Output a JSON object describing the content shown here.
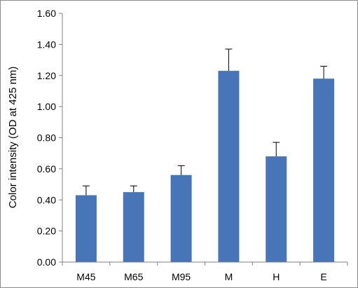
{
  "chart_data": {
    "type": "bar",
    "title": "",
    "xlabel": "",
    "ylabel": "Color intensity (OD at 425 nm)",
    "categories": [
      "M45",
      "M65",
      "M95",
      "M",
      "H",
      "E"
    ],
    "values": [
      0.43,
      0.45,
      0.56,
      1.23,
      0.68,
      1.18
    ],
    "error_upper": [
      0.49,
      0.49,
      0.62,
      1.37,
      0.77,
      1.26
    ],
    "y_ticks": [
      "0.00",
      "0.20",
      "0.40",
      "0.60",
      "0.80",
      "1.00",
      "1.20",
      "1.40",
      "1.60"
    ],
    "ylim": [
      0,
      1.6
    ],
    "grid": false,
    "legend": "none",
    "bar_color": "#4775b8",
    "axis_color": "#808080"
  }
}
